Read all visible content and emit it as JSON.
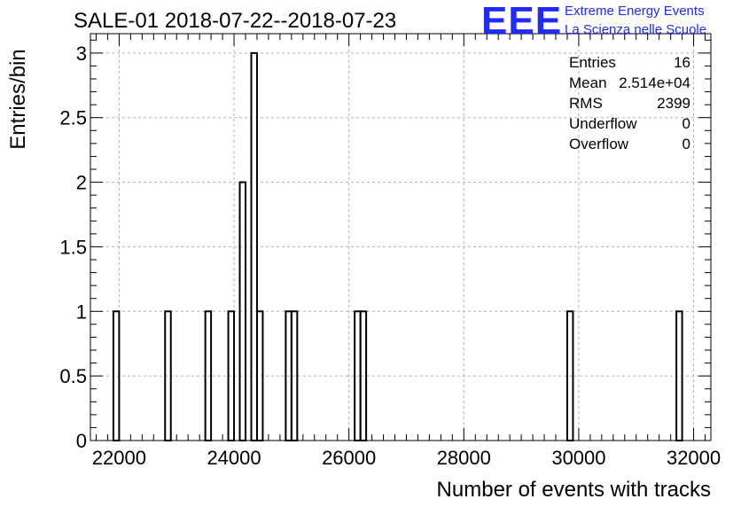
{
  "chart_data": {
    "type": "bar",
    "title": "SALE-01 2018-07-22--2018-07-23",
    "xlabel": "Number of events with tracks",
    "ylabel": "Entries/bin",
    "xlim": [
      21500,
      32300
    ],
    "ylim": [
      0,
      3.15
    ],
    "bin_width": 100,
    "x_ticks": [
      22000,
      24000,
      26000,
      28000,
      30000,
      32000
    ],
    "y_ticks": [
      0,
      0.5,
      1,
      1.5,
      2,
      2.5,
      3
    ],
    "x_tick_labels": [
      "22000",
      "24000",
      "26000",
      "28000",
      "30000",
      "32000"
    ],
    "y_tick_labels": [
      "0",
      "0.5",
      "1",
      "1.5",
      "2",
      "2.5",
      "3"
    ],
    "grid": true,
    "bins": [
      {
        "x": 21900,
        "count": 1
      },
      {
        "x": 22800,
        "count": 1
      },
      {
        "x": 23500,
        "count": 1
      },
      {
        "x": 23900,
        "count": 1
      },
      {
        "x": 24100,
        "count": 2
      },
      {
        "x": 24300,
        "count": 3
      },
      {
        "x": 24400,
        "count": 1
      },
      {
        "x": 24900,
        "count": 1
      },
      {
        "x": 25000,
        "count": 1
      },
      {
        "x": 26100,
        "count": 1
      },
      {
        "x": 26200,
        "count": 1
      },
      {
        "x": 29800,
        "count": 1
      },
      {
        "x": 31700,
        "count": 1
      }
    ],
    "stats": [
      {
        "label": "Entries",
        "value": "16"
      },
      {
        "label": "Mean",
        "value": "2.514e+04"
      },
      {
        "label": "RMS",
        "value": "2399"
      },
      {
        "label": "Underflow",
        "value": "0"
      },
      {
        "label": "Overflow",
        "value": "0"
      }
    ],
    "logo": {
      "mark": "EEE",
      "line1": "Extreme Energy Events",
      "line2": "La Scienza nelle Scuole"
    },
    "colors": {
      "line": "#000000",
      "grid": "#b0b0b0",
      "logo": "#1f2bff"
    }
  }
}
